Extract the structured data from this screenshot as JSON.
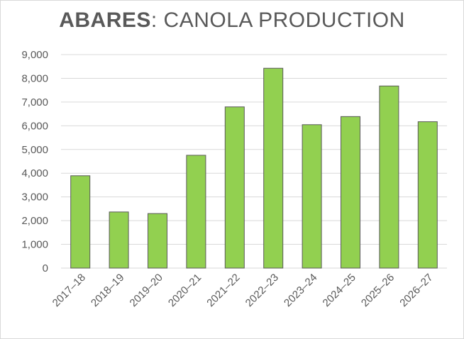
{
  "title": {
    "bold": "ABARES",
    "rest": ": CANOLA PRODUCTION"
  },
  "chart_data": {
    "type": "bar",
    "title": "ABARES: CANOLA PRODUCTION",
    "categories": [
      "2017–18",
      "2018–19",
      "2019–20",
      "2020–21",
      "2021–22",
      "2022–23",
      "2023–24",
      "2024–25",
      "2025–26",
      "2026–27"
    ],
    "values": [
      3893,
      2366,
      2299,
      4756,
      6796,
      8425,
      6046,
      6388,
      7677,
      6171
    ],
    "ylim": [
      0,
      9000
    ],
    "yticks": [
      "0",
      "1,000",
      "2,000",
      "3,000",
      "4,000",
      "5,000",
      "6,000",
      "7,000",
      "8,000",
      "9,000"
    ],
    "ytick_values": [
      0,
      1000,
      2000,
      3000,
      4000,
      5000,
      6000,
      7000,
      8000,
      9000
    ],
    "grid": true,
    "legend": "none",
    "bar_color": "#92d050",
    "bar_edge_color": "#595959",
    "grid_color": "#d9d9d9",
    "text_color": "#595959"
  }
}
